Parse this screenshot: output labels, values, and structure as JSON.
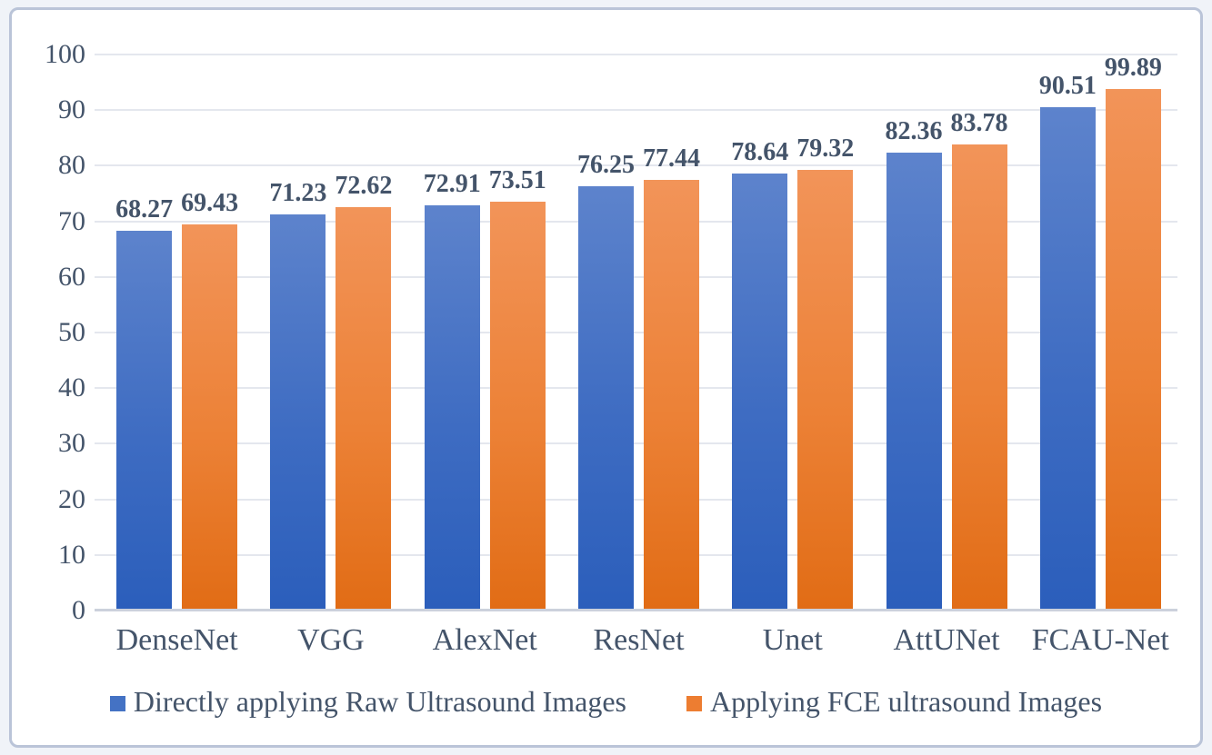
{
  "chart_data": {
    "type": "bar",
    "title": "",
    "xlabel": "",
    "ylabel": "",
    "categories": [
      "DenseNet",
      "VGG",
      "AlexNet",
      "ResNet",
      "Unet",
      "AttUNet",
      "FCAU-Net"
    ],
    "series": [
      {
        "name": "Directly applying Raw Ultrasound Images",
        "values": [
          68.27,
          71.23,
          72.91,
          76.25,
          78.64,
          82.36,
          90.51
        ],
        "legend_color": "#4472c4",
        "gradient_top": "#5d83cc",
        "gradient_bottom": "#2b5ebb"
      },
      {
        "name": "Applying FCE ultrasound Images",
        "values": [
          69.43,
          72.62,
          73.51,
          77.44,
          79.32,
          83.78,
          99.89
        ],
        "legend_color": "#ed7d31",
        "gradient_top": "#f29459",
        "gradient_bottom": "#e16c15"
      }
    ],
    "ylim": [
      0,
      100
    ],
    "y_ticks": [
      0,
      10,
      20,
      30,
      40,
      50,
      60,
      70,
      80,
      90,
      100
    ],
    "grid": true,
    "legend_position": "bottom",
    "data_labels_shown": true
  },
  "colors": {
    "axis_text": "#44546a",
    "gridline": "#e4e7ee",
    "baseline": "#ccd1dc",
    "frame_border": "#bac4d8",
    "background": "#ffffff"
  }
}
